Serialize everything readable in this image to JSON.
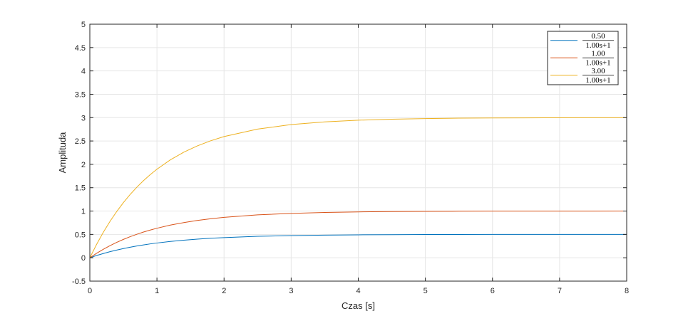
{
  "chart_data": {
    "type": "line",
    "xlabel": "Czas [s]",
    "ylabel": "Amplituda",
    "xlim": [
      0,
      8
    ],
    "ylim": [
      -0.5,
      5
    ],
    "x_ticks": [
      "0",
      "1",
      "2",
      "3",
      "4",
      "5",
      "6",
      "7",
      "8"
    ],
    "y_ticks": [
      "-0.5",
      "0",
      "0.5",
      "1",
      "1.5",
      "2",
      "2.5",
      "3",
      "3.5",
      "4",
      "4.5",
      "5"
    ],
    "grid": true,
    "legend_position": "top-right",
    "x": [
      0,
      0.1,
      0.2,
      0.3,
      0.4,
      0.5,
      0.6,
      0.7,
      0.8,
      0.9,
      1.0,
      1.2,
      1.4,
      1.6,
      1.8,
      2.0,
      2.5,
      3.0,
      3.5,
      4.0,
      4.5,
      5.0,
      5.5,
      6.0,
      6.5,
      7.0,
      7.5,
      8.0
    ],
    "series": [
      {
        "name_num": "0.50",
        "name_den": "1.00s+1",
        "color": "#0072BD",
        "values": [
          0,
          0.048,
          0.091,
          0.13,
          0.165,
          0.197,
          0.226,
          0.252,
          0.275,
          0.297,
          0.316,
          0.349,
          0.377,
          0.399,
          0.417,
          0.432,
          0.459,
          0.475,
          0.485,
          0.491,
          0.494,
          0.497,
          0.498,
          0.499,
          0.499,
          0.5,
          0.5,
          0.5
        ]
      },
      {
        "name_num": "1.00",
        "name_den": "1.00s+1",
        "color": "#D95319",
        "values": [
          0,
          0.095,
          0.181,
          0.259,
          0.33,
          0.393,
          0.451,
          0.503,
          0.551,
          0.593,
          0.632,
          0.699,
          0.753,
          0.798,
          0.835,
          0.865,
          0.918,
          0.95,
          0.97,
          0.982,
          0.989,
          0.993,
          0.996,
          0.998,
          0.998,
          0.999,
          0.999,
          1.0
        ]
      },
      {
        "name_num": "3.00",
        "name_den": "1.00s+1",
        "color": "#EDB120",
        "values": [
          0,
          0.285,
          0.544,
          0.778,
          0.989,
          1.18,
          1.354,
          1.51,
          1.652,
          1.78,
          1.896,
          2.096,
          2.26,
          2.394,
          2.504,
          2.594,
          2.754,
          2.851,
          2.909,
          2.945,
          2.967,
          2.98,
          2.988,
          2.993,
          2.995,
          2.997,
          2.998,
          2.999
        ]
      }
    ]
  }
}
